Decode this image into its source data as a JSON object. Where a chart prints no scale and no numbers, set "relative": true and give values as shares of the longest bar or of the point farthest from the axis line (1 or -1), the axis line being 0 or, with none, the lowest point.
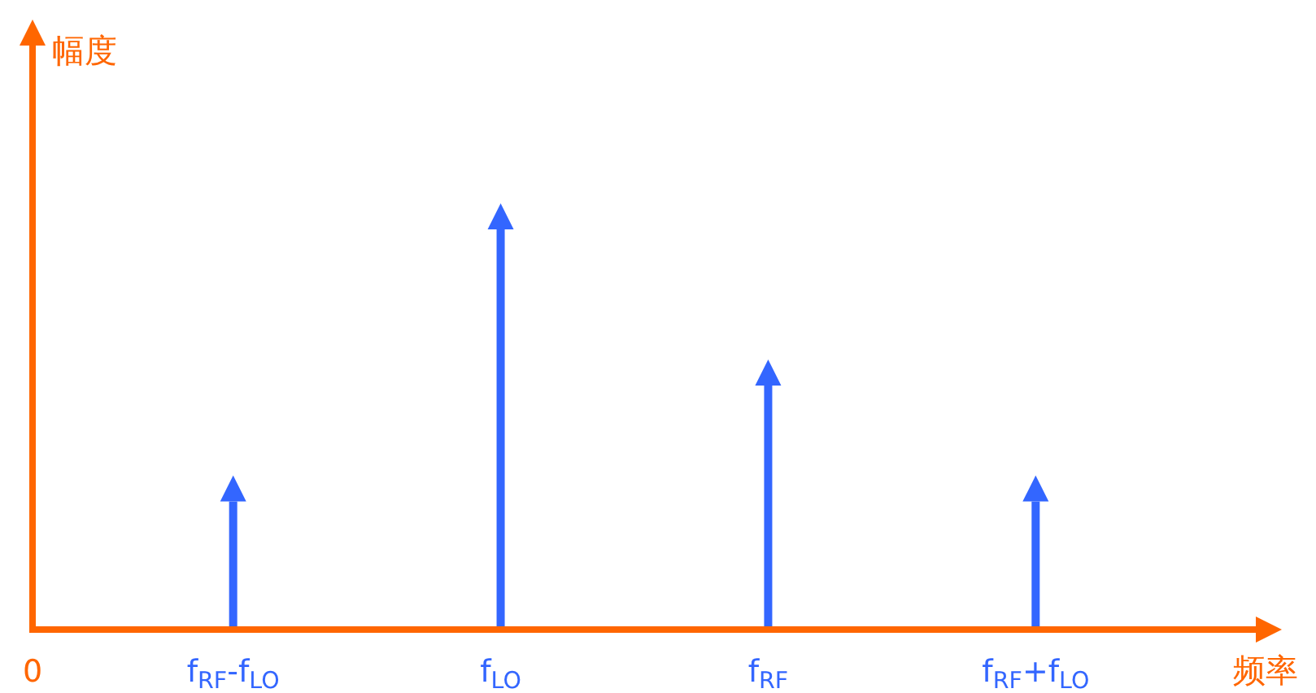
{
  "chart_data": {
    "type": "bar",
    "relative": true,
    "xlabel": "频率",
    "ylabel": "幅度",
    "color": "#3366ff",
    "annotations": [
      "0"
    ],
    "categories": [
      "f$_{RF}$-f$_{LO}$",
      "f$_{LO}$",
      "f$_{RF}$",
      "f$_{RF}$+f$_{LO}$"
    ],
    "values": [
      0.32,
      1,
      0.61,
      0.32
    ]
  }
}
